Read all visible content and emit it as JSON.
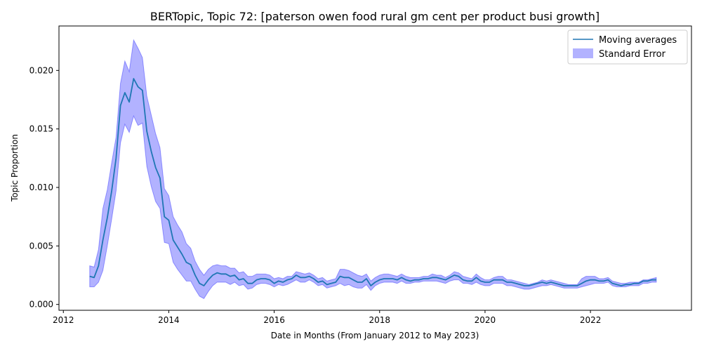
{
  "chart_data": {
    "type": "line",
    "title": "BERTopic, Topic 72: [paterson owen food rural gm cent per product busi growth]",
    "xlabel": "Date in Months (From January 2012 to May 2023)",
    "ylabel": "Topic Proportion",
    "xlim": [
      "2011-12",
      "2023-12"
    ],
    "ylim": [
      -0.0005,
      0.0238
    ],
    "xticks": [
      "2012",
      "2014",
      "2016",
      "2018",
      "2020",
      "2022"
    ],
    "yticks": [
      "0.000",
      "0.005",
      "0.010",
      "0.015",
      "0.020"
    ],
    "grid": false,
    "legend_position": "top-right",
    "colors": {
      "line": "#1f77b4",
      "band": "#0000ff",
      "band_opacity": 0.3
    },
    "series": [
      {
        "name": "Moving averages",
        "kind": "line",
        "points": [
          [
            "2012-07",
            0.0024
          ],
          [
            "2012-08",
            0.0023
          ],
          [
            "2012-09",
            0.0033
          ],
          [
            "2012-10",
            0.0055
          ],
          [
            "2012-11",
            0.0074
          ],
          [
            "2012-12",
            0.0097
          ],
          [
            "2013-01",
            0.0125
          ],
          [
            "2013-02",
            0.017
          ],
          [
            "2013-03",
            0.0181
          ],
          [
            "2013-04",
            0.0173
          ],
          [
            "2013-05",
            0.0193
          ],
          [
            "2013-06",
            0.0186
          ],
          [
            "2013-07",
            0.0183
          ],
          [
            "2013-08",
            0.0148
          ],
          [
            "2013-09",
            0.0131
          ],
          [
            "2013-10",
            0.0117
          ],
          [
            "2013-11",
            0.0108
          ],
          [
            "2013-12",
            0.0075
          ],
          [
            "2014-01",
            0.0072
          ],
          [
            "2014-02",
            0.0055
          ],
          [
            "2014-03",
            0.0049
          ],
          [
            "2014-04",
            0.0043
          ],
          [
            "2014-05",
            0.0036
          ],
          [
            "2014-06",
            0.0034
          ],
          [
            "2014-07",
            0.0025
          ],
          [
            "2014-08",
            0.0018
          ],
          [
            "2014-09",
            0.0016
          ],
          [
            "2014-10",
            0.0021
          ],
          [
            "2014-11",
            0.0025
          ],
          [
            "2014-12",
            0.0027
          ],
          [
            "2015-01",
            0.0026
          ],
          [
            "2015-02",
            0.0026
          ],
          [
            "2015-03",
            0.0024
          ],
          [
            "2015-04",
            0.0025
          ],
          [
            "2015-05",
            0.0021
          ],
          [
            "2015-06",
            0.0022
          ],
          [
            "2015-07",
            0.0018
          ],
          [
            "2015-08",
            0.0018
          ],
          [
            "2015-09",
            0.0021
          ],
          [
            "2015-10",
            0.0022
          ],
          [
            "2015-11",
            0.0022
          ],
          [
            "2015-12",
            0.0021
          ],
          [
            "2016-01",
            0.0018
          ],
          [
            "2016-02",
            0.002
          ],
          [
            "2016-03",
            0.0019
          ],
          [
            "2016-04",
            0.0021
          ],
          [
            "2016-05",
            0.0022
          ],
          [
            "2016-06",
            0.0025
          ],
          [
            "2016-07",
            0.0023
          ],
          [
            "2016-08",
            0.0023
          ],
          [
            "2016-09",
            0.0024
          ],
          [
            "2016-10",
            0.0022
          ],
          [
            "2016-11",
            0.0019
          ],
          [
            "2016-12",
            0.002
          ],
          [
            "2017-01",
            0.0017
          ],
          [
            "2017-02",
            0.0018
          ],
          [
            "2017-03",
            0.0019
          ],
          [
            "2017-04",
            0.0024
          ],
          [
            "2017-05",
            0.0023
          ],
          [
            "2017-06",
            0.0023
          ],
          [
            "2017-07",
            0.0021
          ],
          [
            "2017-08",
            0.0019
          ],
          [
            "2017-09",
            0.0019
          ],
          [
            "2017-10",
            0.0022
          ],
          [
            "2017-11",
            0.0016
          ],
          [
            "2017-12",
            0.0019
          ],
          [
            "2018-01",
            0.0021
          ],
          [
            "2018-02",
            0.0022
          ],
          [
            "2018-03",
            0.0022
          ],
          [
            "2018-04",
            0.0022
          ],
          [
            "2018-05",
            0.0021
          ],
          [
            "2018-06",
            0.0023
          ],
          [
            "2018-07",
            0.0021
          ],
          [
            "2018-08",
            0.002
          ],
          [
            "2018-09",
            0.0021
          ],
          [
            "2018-10",
            0.0021
          ],
          [
            "2018-11",
            0.0022
          ],
          [
            "2018-12",
            0.0022
          ],
          [
            "2019-01",
            0.0023
          ],
          [
            "2019-02",
            0.0023
          ],
          [
            "2019-03",
            0.0022
          ],
          [
            "2019-04",
            0.0021
          ],
          [
            "2019-05",
            0.0023
          ],
          [
            "2019-06",
            0.0025
          ],
          [
            "2019-07",
            0.0024
          ],
          [
            "2019-08",
            0.0021
          ],
          [
            "2019-09",
            0.002
          ],
          [
            "2019-10",
            0.002
          ],
          [
            "2019-11",
            0.0023
          ],
          [
            "2019-12",
            0.002
          ],
          [
            "2020-01",
            0.0019
          ],
          [
            "2020-02",
            0.0019
          ],
          [
            "2020-03",
            0.0021
          ],
          [
            "2020-04",
            0.0021
          ],
          [
            "2020-05",
            0.0021
          ],
          [
            "2020-06",
            0.0019
          ],
          [
            "2020-07",
            0.0019
          ],
          [
            "2020-08",
            0.0018
          ],
          [
            "2020-09",
            0.0017
          ],
          [
            "2020-10",
            0.0016
          ],
          [
            "2020-11",
            0.0016
          ],
          [
            "2020-12",
            0.0017
          ],
          [
            "2021-01",
            0.0018
          ],
          [
            "2021-02",
            0.0019
          ],
          [
            "2021-03",
            0.0018
          ],
          [
            "2021-04",
            0.0019
          ],
          [
            "2021-05",
            0.0018
          ],
          [
            "2021-06",
            0.0017
          ],
          [
            "2021-07",
            0.0016
          ],
          [
            "2021-08",
            0.0016
          ],
          [
            "2021-09",
            0.0016
          ],
          [
            "2021-10",
            0.0016
          ],
          [
            "2021-11",
            0.0018
          ],
          [
            "2021-12",
            0.002
          ],
          [
            "2022-01",
            0.0021
          ],
          [
            "2022-02",
            0.0021
          ],
          [
            "2022-03",
            0.002
          ],
          [
            "2022-04",
            0.002
          ],
          [
            "2022-05",
            0.0021
          ],
          [
            "2022-06",
            0.0018
          ],
          [
            "2022-07",
            0.0017
          ],
          [
            "2022-08",
            0.0016
          ],
          [
            "2022-09",
            0.0017
          ],
          [
            "2022-10",
            0.0017
          ],
          [
            "2022-11",
            0.0018
          ],
          [
            "2022-12",
            0.0018
          ],
          [
            "2023-01",
            0.002
          ],
          [
            "2023-02",
            0.002
          ],
          [
            "2023-03",
            0.0021
          ],
          [
            "2023-04",
            0.0021
          ]
        ]
      },
      {
        "name": "Standard Error",
        "kind": "band",
        "upper": [
          0.0033,
          0.0032,
          0.0047,
          0.0082,
          0.0098,
          0.0121,
          0.0143,
          0.0189,
          0.0208,
          0.0199,
          0.0226,
          0.0219,
          0.0211,
          0.0178,
          0.0162,
          0.0146,
          0.0134,
          0.0099,
          0.0093,
          0.0075,
          0.0068,
          0.0062,
          0.0052,
          0.0048,
          0.0037,
          0.003,
          0.0025,
          0.003,
          0.0033,
          0.0034,
          0.0033,
          0.0033,
          0.0031,
          0.0031,
          0.0027,
          0.0028,
          0.0024,
          0.0024,
          0.0026,
          0.0026,
          0.0026,
          0.0025,
          0.0022,
          0.0023,
          0.0022,
          0.0024,
          0.0024,
          0.0028,
          0.0027,
          0.0026,
          0.0027,
          0.0025,
          0.0022,
          0.0023,
          0.002,
          0.0021,
          0.0022,
          0.003,
          0.003,
          0.0029,
          0.0027,
          0.0025,
          0.0024,
          0.0026,
          0.002,
          0.0023,
          0.0025,
          0.0026,
          0.0026,
          0.0025,
          0.0024,
          0.0026,
          0.0024,
          0.0023,
          0.0023,
          0.0023,
          0.0024,
          0.0024,
          0.0026,
          0.0025,
          0.0025,
          0.0023,
          0.0025,
          0.0028,
          0.0027,
          0.0024,
          0.0023,
          0.0022,
          0.0026,
          0.0023,
          0.0021,
          0.0021,
          0.0023,
          0.0024,
          0.0024,
          0.0021,
          0.0021,
          0.002,
          0.0019,
          0.0018,
          0.0017,
          0.0018,
          0.0019,
          0.0021,
          0.002,
          0.0021,
          0.002,
          0.0019,
          0.0018,
          0.0017,
          0.0017,
          0.0017,
          0.0022,
          0.0024,
          0.0024,
          0.0024,
          0.0022,
          0.0022,
          0.0023,
          0.002,
          0.0019,
          0.0018,
          0.0018,
          0.0019,
          0.0019,
          0.0019,
          0.0021,
          0.0021,
          0.0022,
          0.0023
        ],
        "lower": [
          0.0015,
          0.0015,
          0.0019,
          0.0029,
          0.005,
          0.0073,
          0.0097,
          0.0138,
          0.0154,
          0.0147,
          0.0161,
          0.0153,
          0.0155,
          0.0118,
          0.0101,
          0.0088,
          0.0082,
          0.0053,
          0.0052,
          0.0036,
          0.003,
          0.0025,
          0.002,
          0.002,
          0.0013,
          0.0007,
          0.0005,
          0.0011,
          0.0016,
          0.0019,
          0.0019,
          0.0019,
          0.0017,
          0.0019,
          0.0016,
          0.0017,
          0.0013,
          0.0014,
          0.0017,
          0.0018,
          0.0018,
          0.0017,
          0.0015,
          0.0017,
          0.0016,
          0.0017,
          0.0019,
          0.0021,
          0.0019,
          0.0019,
          0.0021,
          0.0019,
          0.0016,
          0.0017,
          0.0014,
          0.0015,
          0.0016,
          0.0018,
          0.0016,
          0.0017,
          0.0015,
          0.0014,
          0.0014,
          0.0017,
          0.0012,
          0.0016,
          0.0018,
          0.0019,
          0.0019,
          0.0019,
          0.0018,
          0.002,
          0.0018,
          0.0018,
          0.0019,
          0.0019,
          0.002,
          0.002,
          0.002,
          0.002,
          0.0019,
          0.0018,
          0.002,
          0.0021,
          0.0021,
          0.0018,
          0.0018,
          0.0017,
          0.0019,
          0.0017,
          0.0016,
          0.0016,
          0.0018,
          0.0018,
          0.0018,
          0.0016,
          0.0016,
          0.0015,
          0.0014,
          0.0013,
          0.0013,
          0.0014,
          0.0015,
          0.0016,
          0.0016,
          0.0017,
          0.0016,
          0.0015,
          0.0014,
          0.0014,
          0.0014,
          0.0014,
          0.0015,
          0.0016,
          0.0017,
          0.0018,
          0.0018,
          0.0018,
          0.0019,
          0.0016,
          0.0015,
          0.0015,
          0.0015,
          0.0016,
          0.0016,
          0.0016,
          0.0018,
          0.0018,
          0.0019,
          0.0019
        ]
      }
    ]
  }
}
